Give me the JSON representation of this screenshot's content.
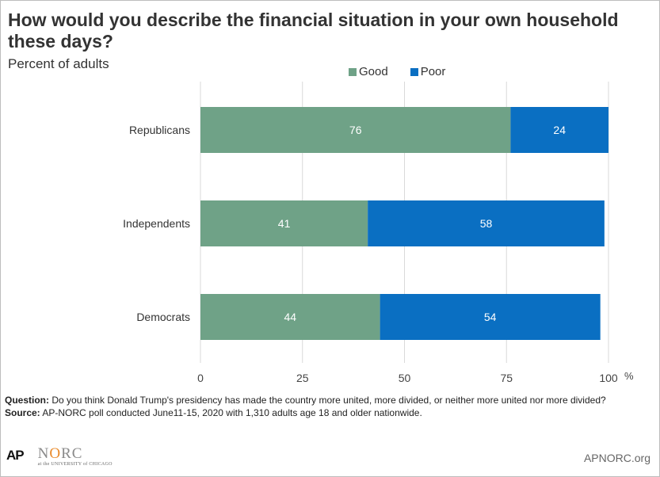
{
  "chart_data": {
    "type": "bar",
    "orientation": "horizontal",
    "stacked": true,
    "title": "How would you describe the financial situation in your own household these days?",
    "subtitle": "Percent of adults",
    "categories": [
      "Republicans",
      "Independents",
      "Democrats"
    ],
    "series": [
      {
        "name": "Good",
        "values": [
          76,
          41,
          44
        ],
        "color": "#6fa287"
      },
      {
        "name": "Poor",
        "values": [
          24,
          58,
          54
        ],
        "color": "#0a6fc2"
      }
    ],
    "xlim": [
      0,
      100
    ],
    "xticks": [
      "0",
      "25",
      "50",
      "75",
      "100"
    ],
    "xunit": "%",
    "grid": true,
    "legend": "top"
  },
  "footnote": {
    "question_label": "Question:",
    "question_text": "Do you think Donald Trump's presidency has made the country more united, more divided, or neither more united nor more divided?",
    "source_label": "Source:",
    "source_text": "AP-NORC poll conducted June11-15, 2020 with 1,310 adults age 18 and older nationwide."
  },
  "logos": {
    "ap": "AP",
    "norc_n": "N",
    "norc_o": "O",
    "norc_rc": "RC",
    "norc_sub": "at the UNIVERSITY of CHICAGO",
    "site": "APNORC.org"
  }
}
